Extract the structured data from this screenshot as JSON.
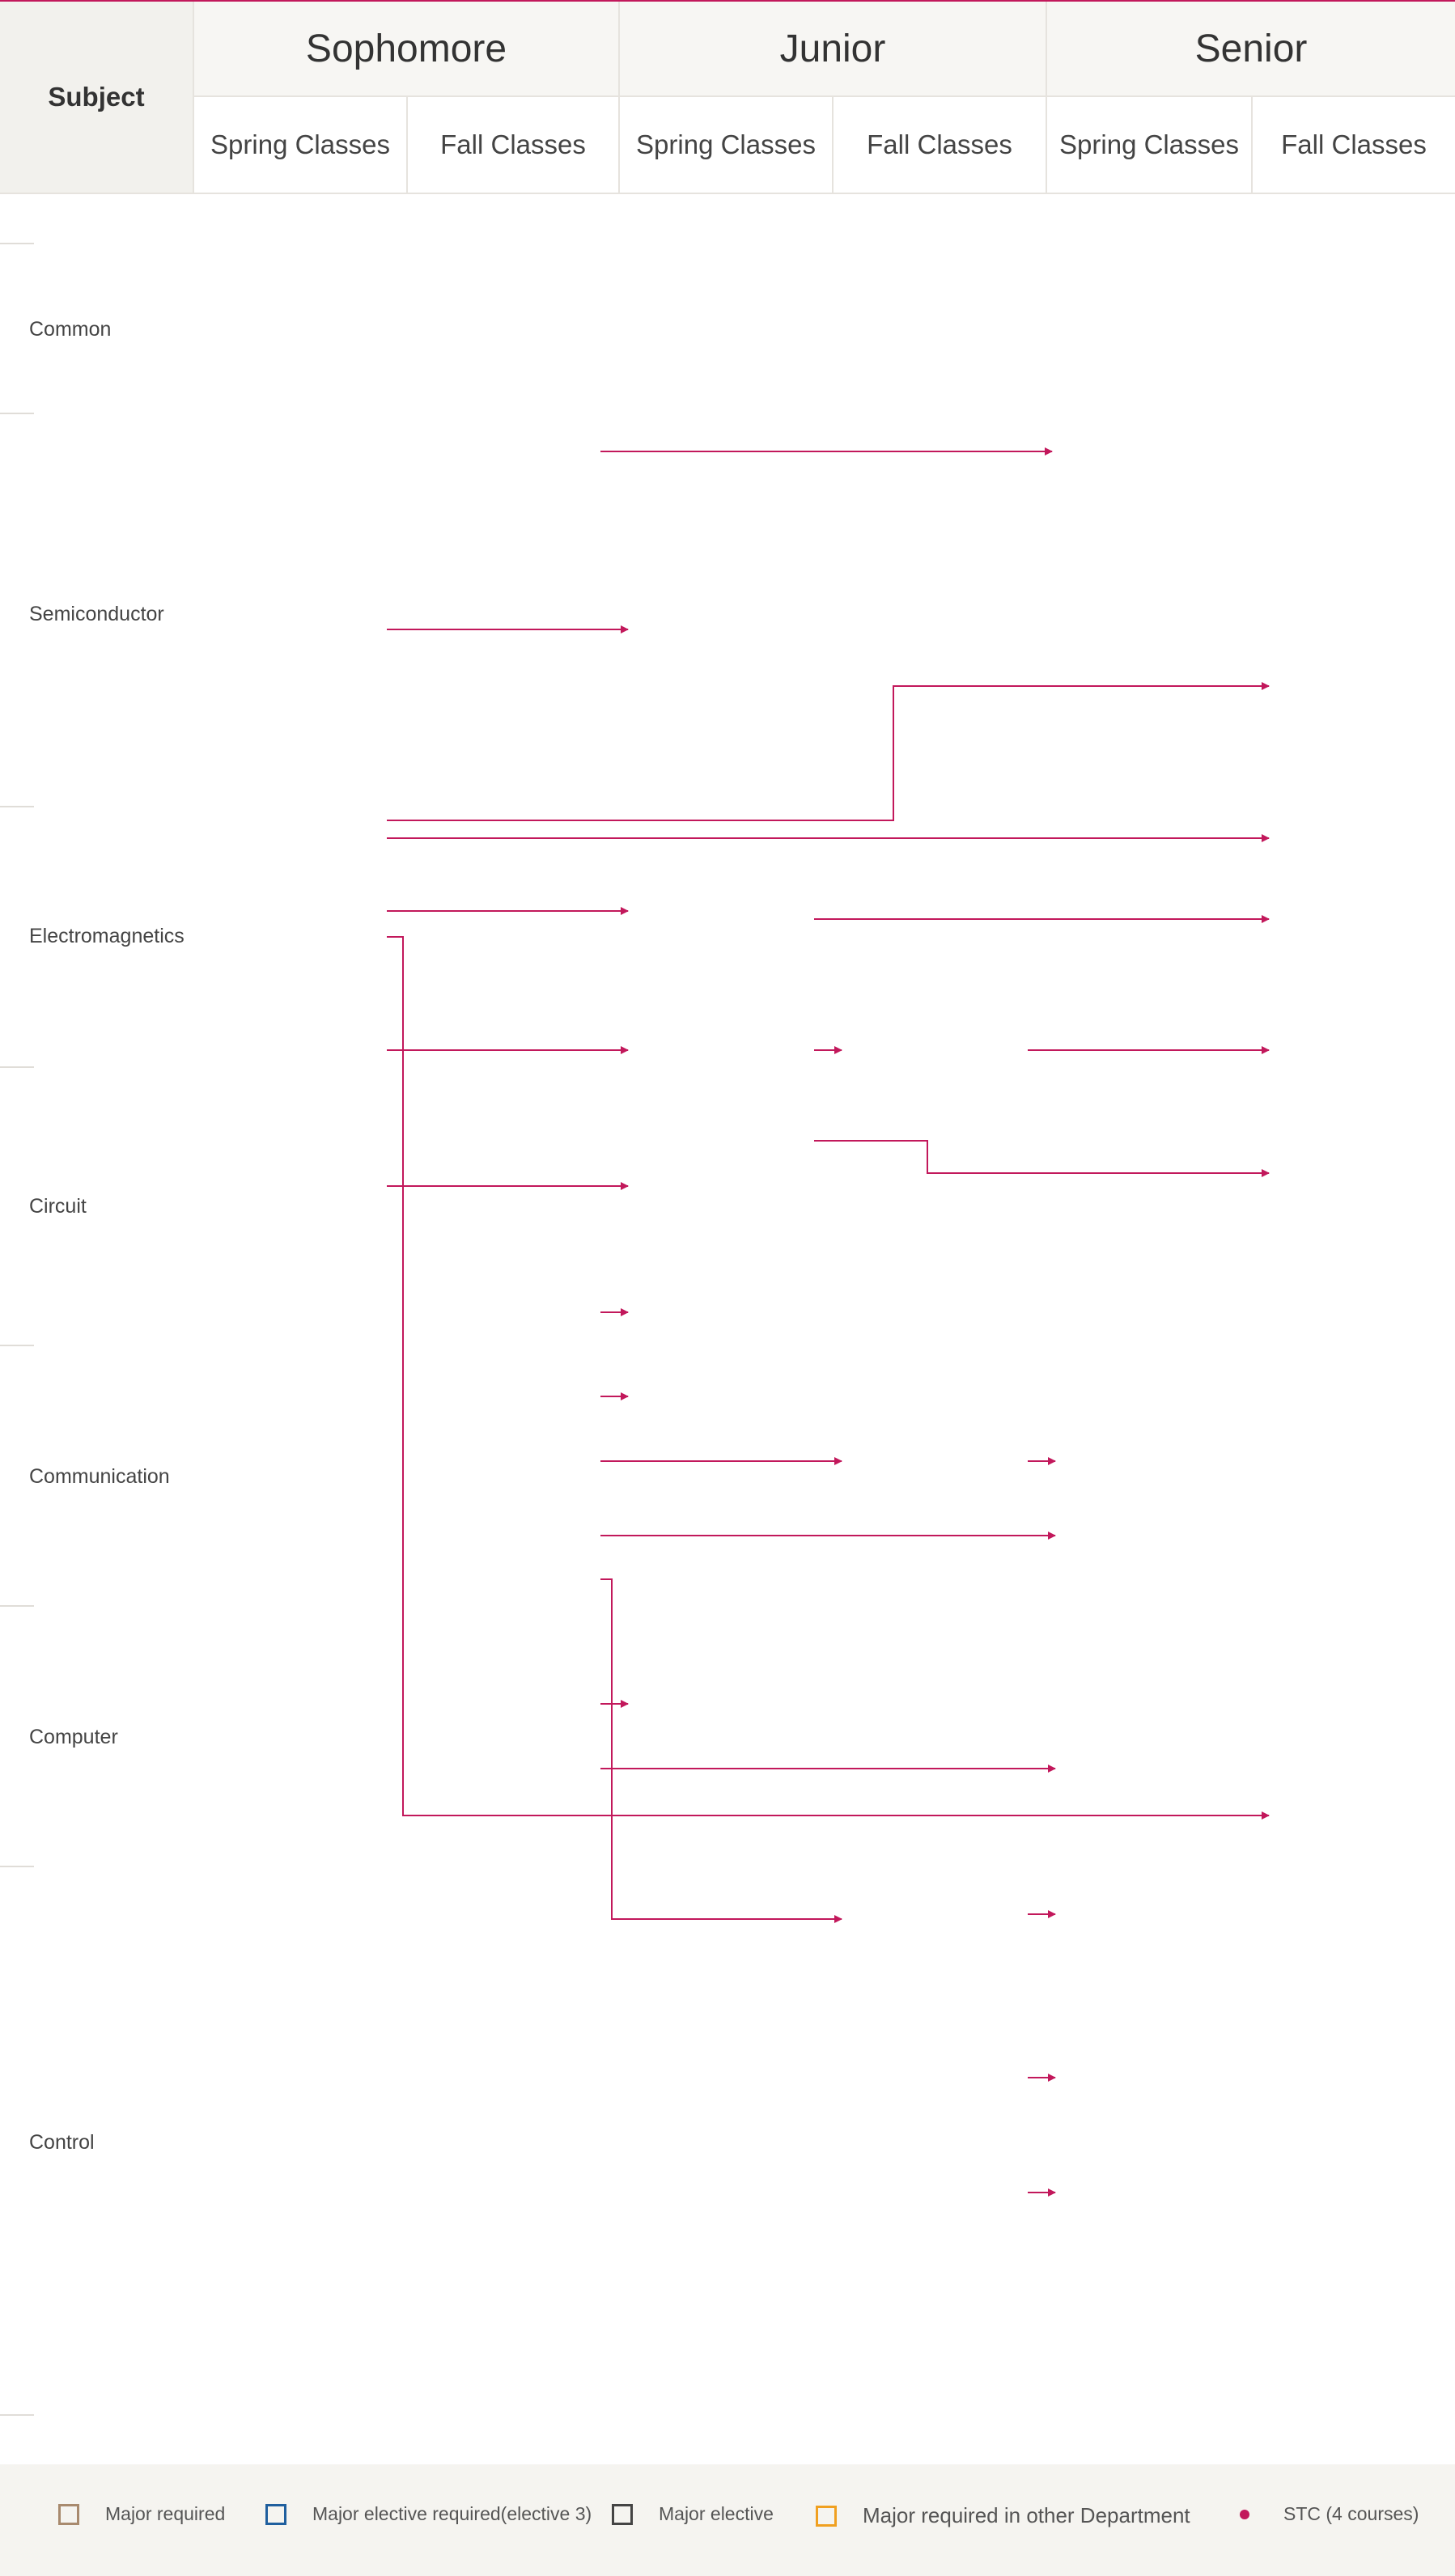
{
  "header": {
    "subject": "Subject",
    "years": [
      "Sophomore",
      "Junior",
      "Senior"
    ],
    "semesters": [
      "Spring Classes",
      "Fall Classes",
      "Spring Classes",
      "Fall Classes",
      "Spring Classes",
      "Fall Classes"
    ]
  },
  "rows": [
    "Common",
    "Semiconductor",
    "Electromagnetics",
    "Circuit",
    "Communication",
    "Computer",
    "Control"
  ],
  "legend": {
    "items": [
      {
        "label": "Major required",
        "color": "#a88a6e"
      },
      {
        "label": "Major elective required(elective 3)",
        "color": "#1f5f9e"
      },
      {
        "label": "Major elective",
        "color": "#444444"
      },
      {
        "label": "Major required in other Department",
        "color": "#f0a020"
      },
      {
        "label": "STC (4 courses)",
        "color": "#c2185b"
      }
    ]
  },
  "connector_color": "#c2185b"
}
